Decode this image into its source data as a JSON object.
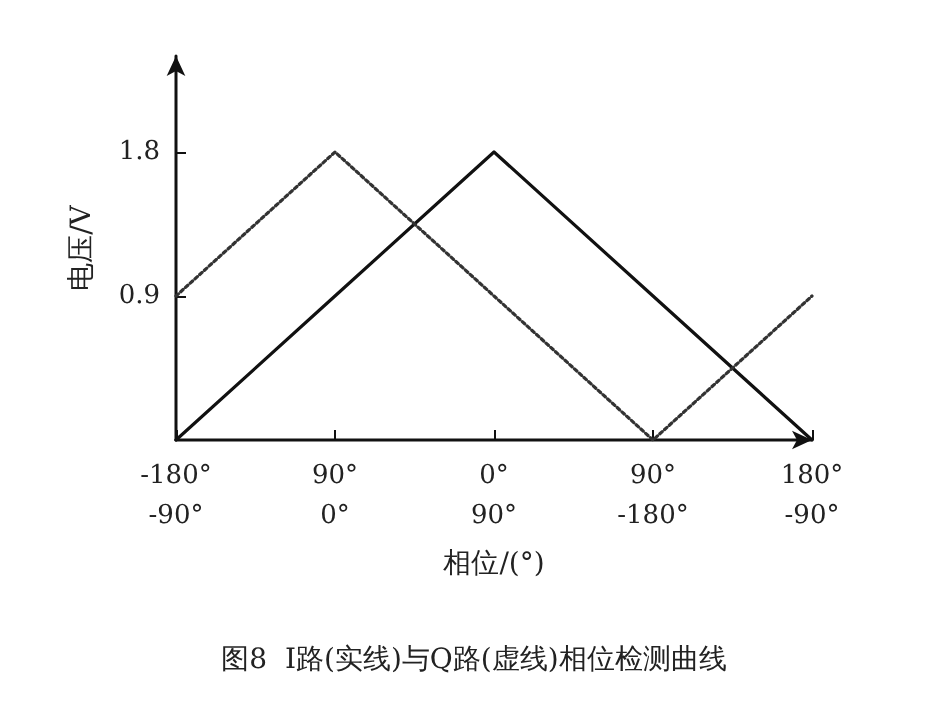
{
  "chart_data": {
    "type": "line",
    "xlabel": "相位/(°)",
    "ylabel": "电压/V",
    "annotations": [
      "图8  I路(实线)与Q路(虚线)相位检测曲线"
    ],
    "categories": [
      "-180°\n-90°",
      "90°\n0°",
      "0°\n90°",
      "90°\n-180°",
      "180°\n-90°"
    ],
    "ylim": [
      0,
      2.4
    ],
    "yticks": [
      0.9,
      1.8
    ],
    "grid": false,
    "marker": "none",
    "series": [
      {
        "color": "#111111",
        "line_style": "solid",
        "values": [
          0,
          0.9,
          1.8,
          0.9,
          0
        ]
      },
      {
        "color": "#333333",
        "line_style": "dotted",
        "values": [
          0.9,
          1.8,
          0.9,
          0,
          0.9
        ]
      }
    ]
  }
}
